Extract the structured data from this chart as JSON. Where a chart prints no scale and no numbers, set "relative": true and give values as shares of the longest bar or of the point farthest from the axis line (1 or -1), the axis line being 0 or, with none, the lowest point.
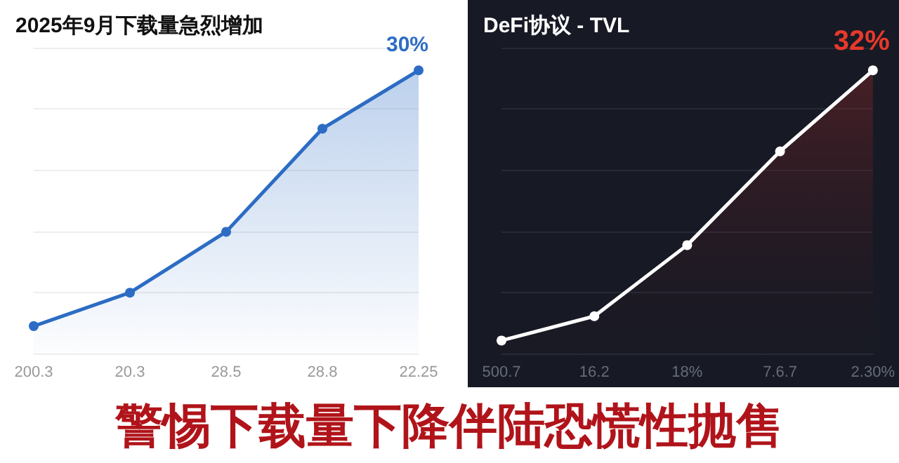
{
  "chart_data": [
    {
      "type": "area",
      "title": "2025年9月下载量急烈增加",
      "categories": [
        "200.3",
        "20.3",
        "28.5",
        "28.8",
        "22.25"
      ],
      "series": [
        {
          "color": "#2c6cc4",
          "values": [
            0.097,
            0.215,
            0.43,
            0.794,
            1
          ]
        }
      ],
      "relative": true,
      "grid": "y",
      "marker": "circle",
      "annotations": [
        {
          "text": "30%",
          "x": "22.25",
          "y": 1
        },
        "警惕下载量下降伴陆恐慌性抛售"
      ]
    },
    {
      "type": "area",
      "title": "DeFi协议 - TVL",
      "categories": [
        "500.7",
        "16.2",
        "18%",
        "7.6.7",
        "2.30%"
      ],
      "series": [
        {
          "color": "#ffffff",
          "values": [
            0.046,
            0.132,
            0.383,
            0.714,
            1
          ]
        }
      ],
      "relative": true,
      "grid": "y",
      "marker": "circle",
      "annotations": [
        {
          "text": "32%",
          "x": "2.30%",
          "y": 1
        }
      ]
    }
  ]
}
